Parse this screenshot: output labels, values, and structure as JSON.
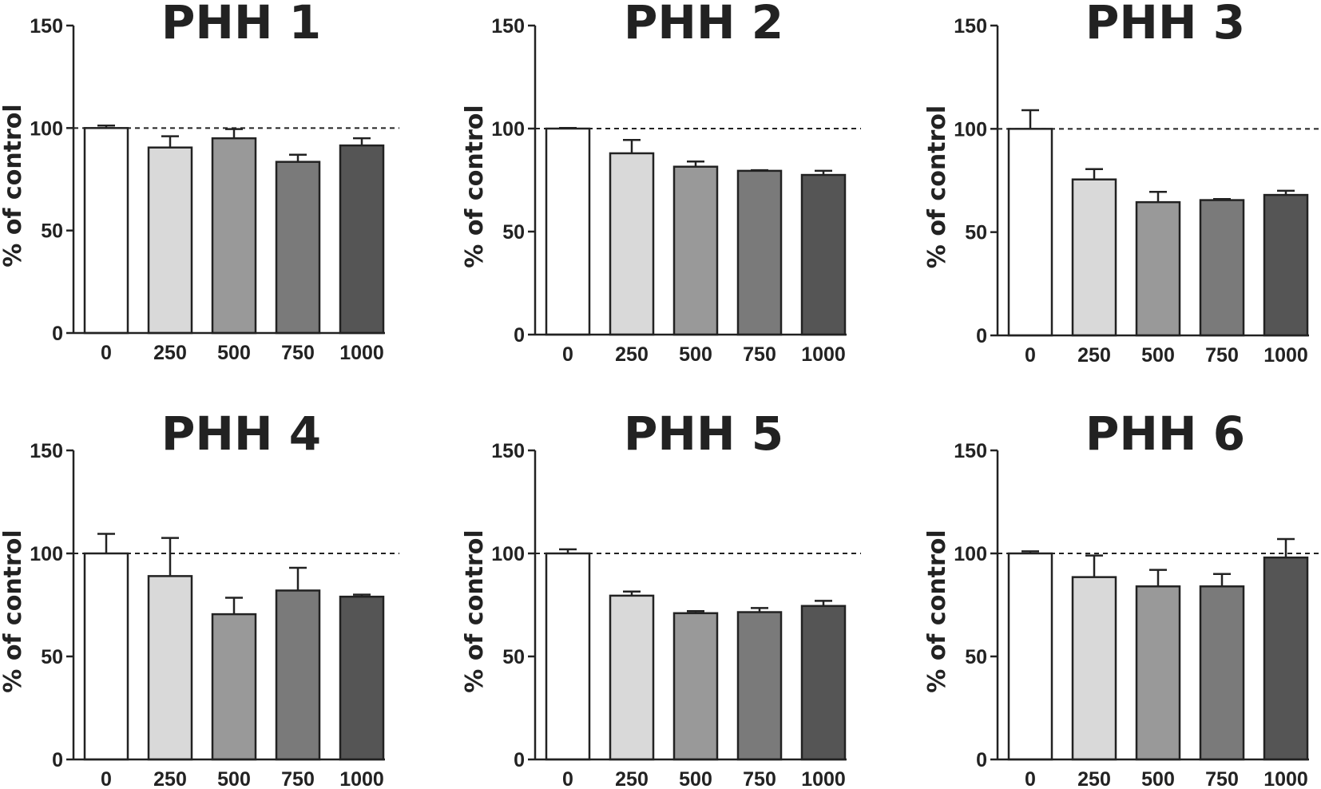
{
  "chart_data": [
    {
      "type": "bar",
      "title": "PHH 1",
      "ylabel": "% of control",
      "xlabel": "",
      "categories": [
        "0",
        "250",
        "500",
        "750",
        "1000"
      ],
      "values": [
        100,
        90.5,
        95,
        83.5,
        91.5
      ],
      "errors": [
        1.2,
        5.5,
        4.5,
        3.5,
        3.5
      ],
      "ylim": [
        0,
        150
      ],
      "yticks": [
        "0",
        "50",
        "100",
        "150"
      ],
      "reference_line": 100
    },
    {
      "type": "bar",
      "title": "PHH 2",
      "ylabel": "% of control",
      "xlabel": "",
      "categories": [
        "0",
        "250",
        "500",
        "750",
        "1000"
      ],
      "values": [
        100,
        88,
        81.5,
        79.5,
        77.5
      ],
      "errors": [
        0.3,
        6.5,
        2.5,
        0.3,
        2
      ],
      "ylim": [
        0,
        150
      ],
      "yticks": [
        "0",
        "50",
        "100",
        "150"
      ],
      "reference_line": 100
    },
    {
      "type": "bar",
      "title": "PHH 3",
      "ylabel": "% of control",
      "xlabel": "",
      "categories": [
        "0",
        "250",
        "500",
        "750",
        "1000"
      ],
      "values": [
        100,
        75.5,
        64.5,
        65.5,
        68
      ],
      "errors": [
        9,
        5,
        5,
        0.5,
        2
      ],
      "ylim": [
        0,
        150
      ],
      "yticks": [
        "0",
        "50",
        "100",
        "150"
      ],
      "reference_line": 100
    },
    {
      "type": "bar",
      "title": "PHH 4",
      "ylabel": "% of control",
      "xlabel": "",
      "categories": [
        "0",
        "250",
        "500",
        "750",
        "1000"
      ],
      "values": [
        100,
        89,
        70.5,
        82,
        79
      ],
      "errors": [
        9.5,
        18.5,
        8,
        11,
        1
      ],
      "ylim": [
        0,
        150
      ],
      "yticks": [
        "0",
        "50",
        "100",
        "150"
      ],
      "reference_line": 100
    },
    {
      "type": "bar",
      "title": "PHH 5",
      "ylabel": "% of control",
      "xlabel": "",
      "categories": [
        "0",
        "250",
        "500",
        "750",
        "1000"
      ],
      "values": [
        100,
        79.5,
        71,
        71.5,
        74.5
      ],
      "errors": [
        2,
        2,
        1,
        2,
        2.5
      ],
      "ylim": [
        0,
        150
      ],
      "yticks": [
        "0",
        "50",
        "100",
        "150"
      ],
      "reference_line": 100
    },
    {
      "type": "bar",
      "title": "PHH 6",
      "ylabel": "% of control",
      "xlabel": "",
      "categories": [
        "0",
        "250",
        "500",
        "750",
        "1000"
      ],
      "values": [
        100,
        88.5,
        84,
        84,
        98
      ],
      "errors": [
        1,
        10.5,
        8,
        6,
        9
      ],
      "ylim": [
        0,
        150
      ],
      "yticks": [
        "0",
        "50",
        "100",
        "150"
      ],
      "reference_line": 100
    }
  ],
  "colors": {
    "bar_fills": [
      "#ffffff",
      "#d9d9d9",
      "#999999",
      "#7a7a7a",
      "#555555"
    ],
    "stroke": "#222222"
  }
}
